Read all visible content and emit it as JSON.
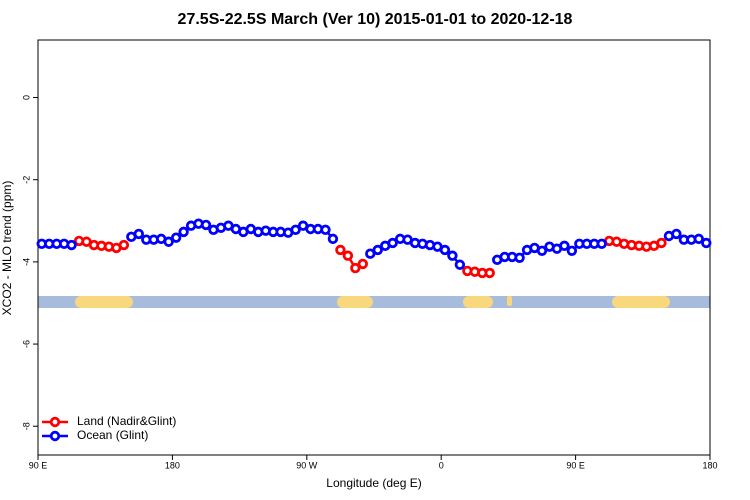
{
  "chart_data": {
    "type": "line",
    "title": "27.5S-22.5S March (Ver 10)   2015-01-01 to 2020-12-18",
    "xlabel": "Longitude (deg E)",
    "ylabel": "XCO2 - MLO trend (ppm)",
    "xlim": [
      90,
      540
    ],
    "ylim": [
      -8.7,
      1.4
    ],
    "xticks": [
      {
        "value": 90,
        "label": "90 E"
      },
      180,
      {
        "value": 270,
        "label": "90 W"
      },
      {
        "value": 360,
        "label": "0"
      },
      {
        "value": 450,
        "label": "90 E"
      },
      {
        "value": 540,
        "label": "180"
      }
    ],
    "yticks": [
      0,
      -2,
      -4,
      -6,
      -8
    ],
    "legend": "bottom-left",
    "x": [
      92.5,
      97.5,
      102.5,
      107.5,
      112.5,
      117.5,
      122.5,
      127.5,
      132.5,
      137.5,
      142.5,
      147.5,
      152.5,
      157.5,
      162.5,
      167.5,
      172.5,
      177.5,
      182.5,
      187.5,
      192.5,
      197.5,
      202.5,
      207.5,
      212.5,
      217.5,
      222.5,
      227.5,
      232.5,
      237.5,
      242.5,
      247.5,
      252.5,
      257.5,
      262.5,
      267.5,
      272.5,
      277.5,
      282.5,
      287.5,
      292.5,
      297.5,
      302.5,
      307.5,
      312.5,
      317.5,
      322.5,
      327.5,
      332.5,
      337.5,
      342.5,
      347.5,
      352.5,
      357.5,
      362.5,
      367.5,
      372.5,
      377.5,
      382.5,
      387.5,
      392.5,
      397.5,
      402.5,
      407.5,
      412.5,
      417.5,
      422.5,
      427.5,
      432.5,
      437.5,
      442.5,
      447.5,
      452.5,
      457.5,
      462.5,
      467.5,
      472.5,
      477.5,
      482.5,
      487.5,
      492.5,
      497.5,
      502.5,
      507.5,
      512.5,
      517.5,
      522.5,
      527.5,
      532.5,
      537.5
    ],
    "series": [
      {
        "name": "Land (Nadir&Glint)",
        "color": "#ff0000",
        "values": [
          null,
          null,
          null,
          null,
          null,
          -3.49,
          -3.51,
          -3.59,
          -3.61,
          -3.63,
          -3.66,
          -3.59,
          null,
          null,
          null,
          null,
          null,
          null,
          null,
          null,
          null,
          null,
          null,
          null,
          null,
          null,
          null,
          null,
          null,
          null,
          null,
          null,
          null,
          null,
          null,
          null,
          null,
          null,
          null,
          null,
          -3.71,
          -3.85,
          -4.15,
          -4.05,
          null,
          null,
          null,
          null,
          null,
          null,
          null,
          null,
          null,
          null,
          null,
          null,
          null,
          -4.22,
          -4.24,
          -4.27,
          -4.27,
          null,
          null,
          null,
          null,
          null,
          null,
          null,
          null,
          null,
          null,
          null,
          null,
          null,
          null,
          null,
          -3.49,
          -3.51,
          -3.56,
          -3.59,
          -3.61,
          -3.63,
          -3.61,
          -3.54,
          null,
          null,
          null,
          null,
          null,
          null
        ]
      },
      {
        "name": "Ocean (Glint)",
        "color": "#0000ff",
        "values": [
          -3.56,
          -3.56,
          -3.56,
          -3.56,
          -3.59,
          null,
          null,
          null,
          null,
          null,
          null,
          null,
          -3.39,
          -3.32,
          -3.46,
          -3.46,
          -3.44,
          -3.51,
          -3.41,
          -3.27,
          -3.12,
          -3.07,
          -3.1,
          -3.22,
          -3.17,
          -3.12,
          -3.2,
          -3.27,
          -3.2,
          -3.27,
          -3.24,
          -3.27,
          -3.27,
          -3.29,
          -3.22,
          -3.12,
          -3.2,
          -3.2,
          -3.22,
          -3.44,
          null,
          null,
          null,
          null,
          -3.8,
          -3.71,
          -3.61,
          -3.54,
          -3.44,
          -3.46,
          -3.54,
          -3.56,
          -3.59,
          -3.63,
          -3.71,
          -3.85,
          -4.07,
          null,
          null,
          null,
          null,
          -3.95,
          -3.88,
          -3.88,
          -3.9,
          -3.71,
          -3.66,
          -3.73,
          -3.63,
          -3.68,
          -3.61,
          -3.73,
          -3.56,
          -3.56,
          -3.56,
          -3.56,
          null,
          null,
          null,
          null,
          null,
          null,
          null,
          null,
          -3.37,
          -3.32,
          -3.46,
          -3.46,
          -3.44,
          -3.54
        ]
      }
    ]
  }
}
